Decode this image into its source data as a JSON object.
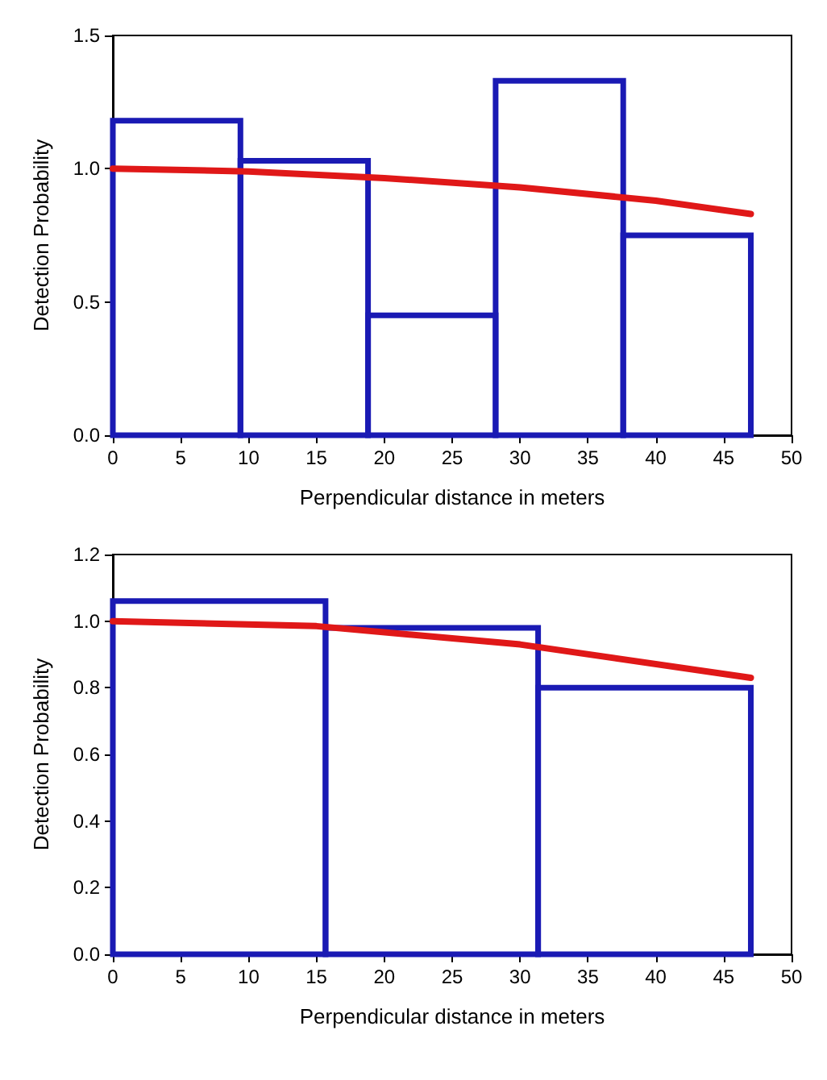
{
  "chart_data": [
    {
      "type": "histogram",
      "xlabel": "Perpendicular distance in meters",
      "ylabel": "Detection Probability",
      "xlim": [
        0,
        50
      ],
      "xticks": [
        0,
        5,
        10,
        15,
        20,
        25,
        30,
        35,
        40,
        45,
        50
      ],
      "ylim": [
        0,
        1.5
      ],
      "yticks": [
        {
          "value": 0,
          "label": "0.0"
        },
        {
          "value": 0.5,
          "label": "0.5"
        },
        {
          "value": 1,
          "label": "1.0"
        },
        {
          "value": 1.5,
          "label": "1.5"
        }
      ],
      "grid": false,
      "series": [
        {
          "type": "histogram",
          "color": "#1a1ab4",
          "bins": [
            0,
            9.4,
            18.8,
            28.2,
            37.6,
            47
          ],
          "values": [
            1.18,
            1.03,
            0.45,
            1.33,
            0.75
          ]
        },
        {
          "type": "line",
          "color": "#e01818",
          "marker": "none",
          "x": [
            0,
            10,
            20,
            30,
            40,
            47
          ],
          "values": [
            1.0,
            0.99,
            0.965,
            0.93,
            0.88,
            0.83
          ]
        }
      ]
    },
    {
      "type": "histogram",
      "xlabel": "Perpendicular distance in meters",
      "ylabel": "Detection Probability",
      "xlim": [
        0,
        50
      ],
      "xticks": [
        0,
        5,
        10,
        15,
        20,
        25,
        30,
        35,
        40,
        45,
        50
      ],
      "ylim": [
        0,
        1.2
      ],
      "yticks": [
        {
          "value": 0,
          "label": "0.0"
        },
        {
          "value": 0.2,
          "label": "0.2"
        },
        {
          "value": 0.4,
          "label": "0.4"
        },
        {
          "value": 0.6,
          "label": "0.6"
        },
        {
          "value": 0.8,
          "label": "0.8"
        },
        {
          "value": 1,
          "label": "1.0"
        },
        {
          "value": 1.2,
          "label": "1.2"
        }
      ],
      "grid": false,
      "series": [
        {
          "type": "histogram",
          "color": "#1a1ab4",
          "bins": [
            0,
            15.67,
            31.33,
            47
          ],
          "values": [
            1.06,
            0.98,
            0.8
          ]
        },
        {
          "type": "line",
          "color": "#e01818",
          "marker": "none",
          "x": [
            0,
            15,
            30,
            47
          ],
          "values": [
            1.0,
            0.985,
            0.93,
            0.83
          ]
        }
      ]
    }
  ]
}
